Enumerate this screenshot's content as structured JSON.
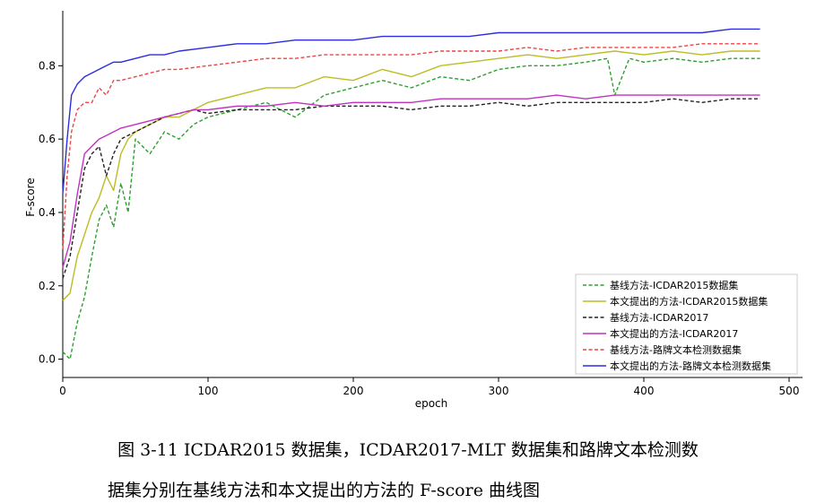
{
  "chart_data": {
    "type": "line",
    "title": "",
    "xlabel": "epoch",
    "ylabel": "F-score",
    "xlim": [
      0,
      500
    ],
    "ylim": [
      -0.05,
      0.95
    ],
    "xticks": [
      "0",
      "100",
      "200",
      "300",
      "400",
      "500"
    ],
    "yticks": [
      "0.0",
      "0.2",
      "0.4",
      "0.6",
      "0.8"
    ],
    "grid": false,
    "legend_position": "bottom-right",
    "series": [
      {
        "name": "基线方法-ICDAR2015数据集",
        "color": "#2ca02c",
        "dash": "dashed",
        "x": [
          0,
          5,
          10,
          15,
          20,
          25,
          30,
          35,
          40,
          45,
          50,
          60,
          70,
          80,
          90,
          100,
          120,
          140,
          160,
          180,
          200,
          220,
          240,
          260,
          280,
          300,
          320,
          340,
          360,
          375,
          380,
          390,
          400,
          420,
          440,
          460,
          480
        ],
        "y": [
          0.02,
          0.0,
          0.1,
          0.17,
          0.28,
          0.38,
          0.42,
          0.36,
          0.48,
          0.4,
          0.6,
          0.56,
          0.62,
          0.6,
          0.64,
          0.66,
          0.68,
          0.7,
          0.66,
          0.72,
          0.74,
          0.76,
          0.74,
          0.77,
          0.76,
          0.79,
          0.8,
          0.8,
          0.81,
          0.82,
          0.72,
          0.82,
          0.81,
          0.82,
          0.81,
          0.82,
          0.82
        ]
      },
      {
        "name": "本文提出的方法-ICDAR2015数据集",
        "color": "#bcbd22",
        "dash": "solid",
        "x": [
          0,
          5,
          10,
          15,
          20,
          25,
          30,
          35,
          40,
          45,
          50,
          60,
          70,
          80,
          90,
          100,
          120,
          140,
          160,
          180,
          200,
          220,
          240,
          260,
          280,
          300,
          320,
          340,
          360,
          380,
          400,
          420,
          440,
          460,
          480
        ],
        "y": [
          0.16,
          0.18,
          0.28,
          0.34,
          0.4,
          0.44,
          0.5,
          0.46,
          0.56,
          0.6,
          0.62,
          0.64,
          0.66,
          0.66,
          0.68,
          0.7,
          0.72,
          0.74,
          0.74,
          0.77,
          0.76,
          0.79,
          0.77,
          0.8,
          0.81,
          0.82,
          0.83,
          0.82,
          0.83,
          0.84,
          0.83,
          0.84,
          0.83,
          0.84,
          0.84
        ]
      },
      {
        "name": "基线方法-ICDAR2017",
        "color": "#222222",
        "dash": "dashed",
        "x": [
          0,
          5,
          10,
          15,
          20,
          25,
          30,
          35,
          40,
          50,
          60,
          70,
          80,
          90,
          100,
          120,
          140,
          160,
          180,
          200,
          220,
          240,
          260,
          280,
          300,
          320,
          340,
          360,
          380,
          400,
          420,
          440,
          460,
          480
        ],
        "y": [
          0.22,
          0.28,
          0.4,
          0.52,
          0.56,
          0.58,
          0.5,
          0.56,
          0.6,
          0.62,
          0.64,
          0.66,
          0.67,
          0.68,
          0.67,
          0.68,
          0.68,
          0.68,
          0.69,
          0.69,
          0.69,
          0.68,
          0.69,
          0.69,
          0.7,
          0.69,
          0.7,
          0.7,
          0.7,
          0.7,
          0.71,
          0.7,
          0.71,
          0.71
        ]
      },
      {
        "name": "本文提出的方法-ICDAR2017",
        "color": "#c231c2",
        "dash": "solid",
        "x": [
          0,
          5,
          10,
          15,
          20,
          25,
          30,
          35,
          40,
          50,
          60,
          70,
          80,
          90,
          100,
          120,
          140,
          160,
          180,
          200,
          220,
          240,
          260,
          280,
          300,
          320,
          340,
          360,
          380,
          400,
          420,
          440,
          460,
          480
        ],
        "y": [
          0.25,
          0.32,
          0.45,
          0.56,
          0.58,
          0.6,
          0.61,
          0.62,
          0.63,
          0.64,
          0.65,
          0.66,
          0.67,
          0.68,
          0.68,
          0.69,
          0.69,
          0.7,
          0.69,
          0.7,
          0.7,
          0.7,
          0.71,
          0.71,
          0.71,
          0.71,
          0.72,
          0.71,
          0.72,
          0.72,
          0.72,
          0.72,
          0.72,
          0.72
        ]
      },
      {
        "name": "基线方法-路牌文本检测数据集",
        "color": "#ee4444",
        "dash": "dashed",
        "x": [
          0,
          3,
          6,
          10,
          15,
          20,
          25,
          30,
          35,
          40,
          50,
          60,
          70,
          80,
          100,
          120,
          140,
          160,
          180,
          200,
          220,
          240,
          260,
          280,
          300,
          320,
          340,
          360,
          380,
          400,
          420,
          440,
          460,
          480
        ],
        "y": [
          0.3,
          0.5,
          0.62,
          0.68,
          0.7,
          0.7,
          0.74,
          0.72,
          0.76,
          0.76,
          0.77,
          0.78,
          0.79,
          0.79,
          0.8,
          0.81,
          0.82,
          0.82,
          0.83,
          0.83,
          0.83,
          0.83,
          0.84,
          0.84,
          0.84,
          0.85,
          0.84,
          0.85,
          0.85,
          0.85,
          0.85,
          0.86,
          0.86,
          0.86
        ]
      },
      {
        "name": "本文提出的方法-路牌文本检测数据集",
        "color": "#2d2de0",
        "dash": "solid",
        "x": [
          0,
          3,
          6,
          10,
          15,
          20,
          25,
          30,
          35,
          40,
          50,
          60,
          70,
          80,
          100,
          120,
          140,
          160,
          180,
          200,
          220,
          240,
          260,
          280,
          300,
          320,
          340,
          360,
          380,
          400,
          420,
          440,
          460,
          480
        ],
        "y": [
          0.45,
          0.6,
          0.72,
          0.75,
          0.77,
          0.78,
          0.79,
          0.8,
          0.81,
          0.81,
          0.82,
          0.83,
          0.83,
          0.84,
          0.85,
          0.86,
          0.86,
          0.87,
          0.87,
          0.87,
          0.88,
          0.88,
          0.88,
          0.88,
          0.89,
          0.89,
          0.89,
          0.89,
          0.89,
          0.89,
          0.89,
          0.89,
          0.9,
          0.9
        ]
      }
    ]
  },
  "caption": {
    "line1": "图 3-11 ICDAR2015 数据集，ICDAR2017-MLT 数据集和路牌文本检测数",
    "line2": "据集分别在基线方法和本文提出的方法的 F-score 曲线图"
  }
}
